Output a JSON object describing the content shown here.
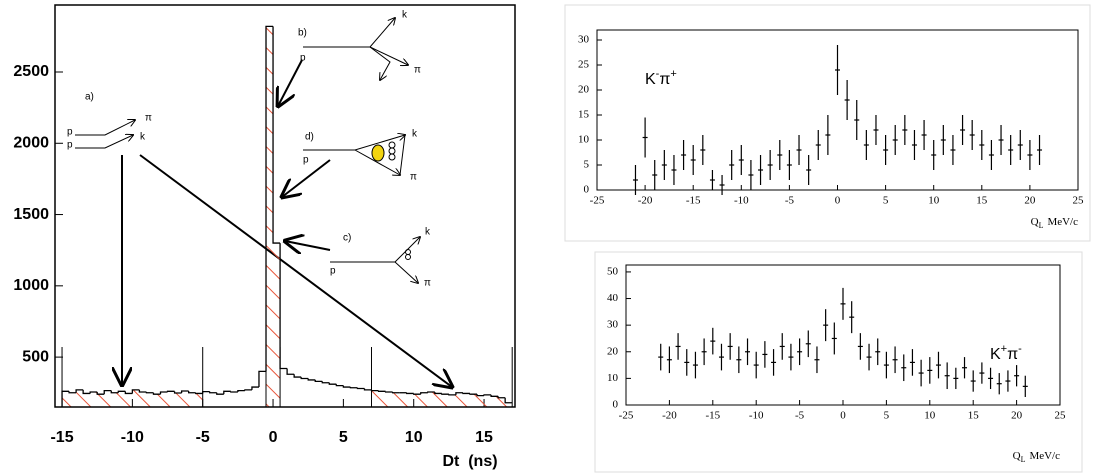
{
  "chart_data": [
    {
      "type": "histogram",
      "x_label": "Dt  (ns)",
      "bins": [
        -15,
        -14.5,
        -14,
        -13.5,
        -13,
        -12.5,
        -12,
        -11.5,
        -11,
        -10.5,
        -10,
        -9.5,
        -9,
        -8.5,
        -8,
        -7.5,
        -7,
        -6.5,
        -6,
        -5.5,
        -5,
        -4.5,
        -4,
        -3.5,
        -3,
        -2.5,
        -2,
        -1.5,
        -1,
        -0.5,
        0,
        0.5,
        1,
        1.5,
        2,
        2.5,
        3,
        3.5,
        4,
        4.5,
        5,
        5.5,
        6,
        6.5,
        7,
        7.5,
        8,
        8.5,
        9,
        9.5,
        10,
        10.5,
        11,
        11.5,
        12,
        12.5,
        13,
        13.5,
        14,
        14.5,
        15,
        15.5,
        16,
        16.5,
        17
      ],
      "counts": [
        260,
        250,
        270,
        245,
        255,
        240,
        265,
        250,
        260,
        245,
        270,
        255,
        250,
        240,
        255,
        260,
        248,
        262,
        250,
        245,
        258,
        250,
        240,
        260,
        255,
        265,
        270,
        290,
        400,
        2820,
        1300,
        420,
        380,
        360,
        350,
        340,
        330,
        320,
        310,
        300,
        290,
        285,
        280,
        270,
        265,
        260,
        255,
        250,
        250,
        245,
        240,
        250,
        255,
        245,
        240,
        235,
        250,
        245,
        240,
        230,
        235,
        225,
        215,
        180
      ],
      "color": "#000000",
      "shaded_regions": [
        [
          -15,
          -5
        ],
        [
          -0.5,
          0.5
        ],
        [
          7,
          17
        ]
      ],
      "shade_color": "#e8553a",
      "xlim": [
        -15.5,
        17.2
      ],
      "ylim": [
        150,
        2970
      ],
      "xticks": [
        -15,
        -10,
        -5,
        0,
        5,
        10,
        15
      ],
      "yticks": [
        500,
        1000,
        1500,
        2000,
        2500
      ],
      "annotations": [
        "a)",
        "p",
        "p",
        "π",
        "k",
        "b)",
        "p",
        "k",
        "π",
        "d)",
        "p",
        "k",
        "π",
        "c)",
        "p",
        "k",
        "π"
      ]
    },
    {
      "type": "errorbar",
      "label": [
        {
          "text": "K",
          "sup": "-"
        },
        {
          "text": "π",
          "sup": "+"
        }
      ],
      "x_label": {
        "main": "Q",
        "sub": "L",
        "unit": "MeV/c"
      },
      "x": [
        -21,
        -20,
        -19,
        -18,
        -17,
        -16,
        -15,
        -14,
        -13,
        -12,
        -11,
        -10,
        -9,
        -8,
        -7,
        -6,
        -5,
        -4,
        -3,
        -2,
        -1,
        0,
        1,
        2,
        3,
        4,
        5,
        6,
        7,
        8,
        9,
        10,
        11,
        12,
        13,
        14,
        15,
        16,
        17,
        18,
        19,
        20,
        21
      ],
      "values": [
        2,
        10.5,
        3,
        5,
        4,
        7,
        6,
        8,
        2,
        1,
        5,
        6,
        3,
        4,
        5,
        7,
        5,
        8,
        4,
        9,
        11,
        24,
        18,
        14,
        9,
        12,
        8,
        10,
        12,
        9,
        11,
        7,
        10,
        8,
        12,
        11,
        9,
        7,
        10,
        8,
        9,
        7,
        8
      ],
      "errors": [
        3,
        4,
        3,
        3,
        3,
        3,
        3,
        3,
        2,
        2,
        3,
        3,
        3,
        3,
        3,
        3,
        3,
        3,
        3,
        3,
        4,
        5,
        4,
        4,
        3,
        3,
        3,
        3,
        3,
        3,
        3,
        3,
        3,
        3,
        3,
        3,
        3,
        3,
        3,
        3,
        3,
        3,
        3
      ],
      "color": "#000000",
      "xlim": [
        -25,
        25
      ],
      "ylim": [
        0,
        32
      ],
      "xticks": [
        -25,
        -20,
        -15,
        -10,
        -5,
        0,
        5,
        10,
        15,
        20,
        25
      ],
      "yticks": [
        0,
        5,
        10,
        15,
        20,
        25,
        30
      ]
    },
    {
      "type": "errorbar",
      "label": [
        {
          "text": "K",
          "sup": "+"
        },
        {
          "text": "π",
          "sup": "-"
        }
      ],
      "x_label": {
        "main": "Q",
        "sub": "L",
        "unit": "MeV/c"
      },
      "x": [
        -21,
        -20,
        -19,
        -18,
        -17,
        -16,
        -15,
        -14,
        -13,
        -12,
        -11,
        -10,
        -9,
        -8,
        -7,
        -6,
        -5,
        -4,
        -3,
        -2,
        -1,
        0,
        1,
        2,
        3,
        4,
        5,
        6,
        7,
        8,
        9,
        10,
        11,
        12,
        13,
        14,
        15,
        16,
        17,
        18,
        19,
        20,
        21
      ],
      "values": [
        18,
        17,
        22,
        16,
        15,
        20,
        24,
        18,
        22,
        17,
        20,
        15,
        19,
        16,
        22,
        18,
        20,
        23,
        17,
        30,
        25,
        38,
        33,
        22,
        18,
        20,
        15,
        17,
        14,
        16,
        12,
        13,
        15,
        11,
        10,
        14,
        9,
        12,
        10,
        8,
        9,
        11,
        7
      ],
      "errors": [
        5,
        5,
        5,
        5,
        5,
        5,
        5,
        5,
        5,
        5,
        5,
        5,
        5,
        5,
        5,
        5,
        5,
        5,
        5,
        6,
        6,
        6,
        6,
        5,
        5,
        5,
        5,
        5,
        5,
        5,
        5,
        5,
        5,
        5,
        4,
        4,
        4,
        4,
        4,
        4,
        4,
        4,
        4
      ],
      "color": "#000000",
      "xlim": [
        -25,
        25
      ],
      "ylim": [
        0,
        52.6
      ],
      "xticks": [
        -25,
        -20,
        -15,
        -10,
        -5,
        0,
        5,
        10,
        15,
        20,
        25
      ],
      "yticks": [
        0,
        10,
        20,
        30,
        40,
        50
      ]
    }
  ]
}
